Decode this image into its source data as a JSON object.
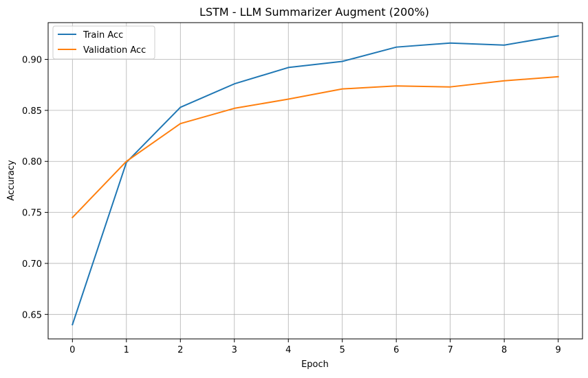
{
  "chart_data": {
    "type": "line",
    "title": "LSTM - LLM Summarizer Augment (200%)",
    "xlabel": "Epoch",
    "ylabel": "Accuracy",
    "x": [
      0,
      1,
      2,
      3,
      4,
      5,
      6,
      7,
      8,
      9
    ],
    "x_ticks": [
      "0",
      "1",
      "2",
      "3",
      "4",
      "5",
      "6",
      "7",
      "8",
      "9"
    ],
    "y_ticks": [
      "0.65",
      "0.70",
      "0.75",
      "0.80",
      "0.85",
      "0.90"
    ],
    "y_tick_values": [
      0.65,
      0.7,
      0.75,
      0.8,
      0.85,
      0.9
    ],
    "xlim": [
      -0.45,
      9.45
    ],
    "ylim": [
      0.626,
      0.936
    ],
    "grid": true,
    "legend_position": "top-left",
    "series": [
      {
        "name": "Train Acc",
        "color": "#1f77b4",
        "values": [
          0.64,
          0.799,
          0.853,
          0.876,
          0.892,
          0.898,
          0.912,
          0.916,
          0.914,
          0.923
        ]
      },
      {
        "name": "Validation Acc",
        "color": "#ff7f0e",
        "values": [
          0.745,
          0.8,
          0.837,
          0.852,
          0.861,
          0.871,
          0.874,
          0.873,
          0.879,
          0.883
        ]
      }
    ]
  }
}
